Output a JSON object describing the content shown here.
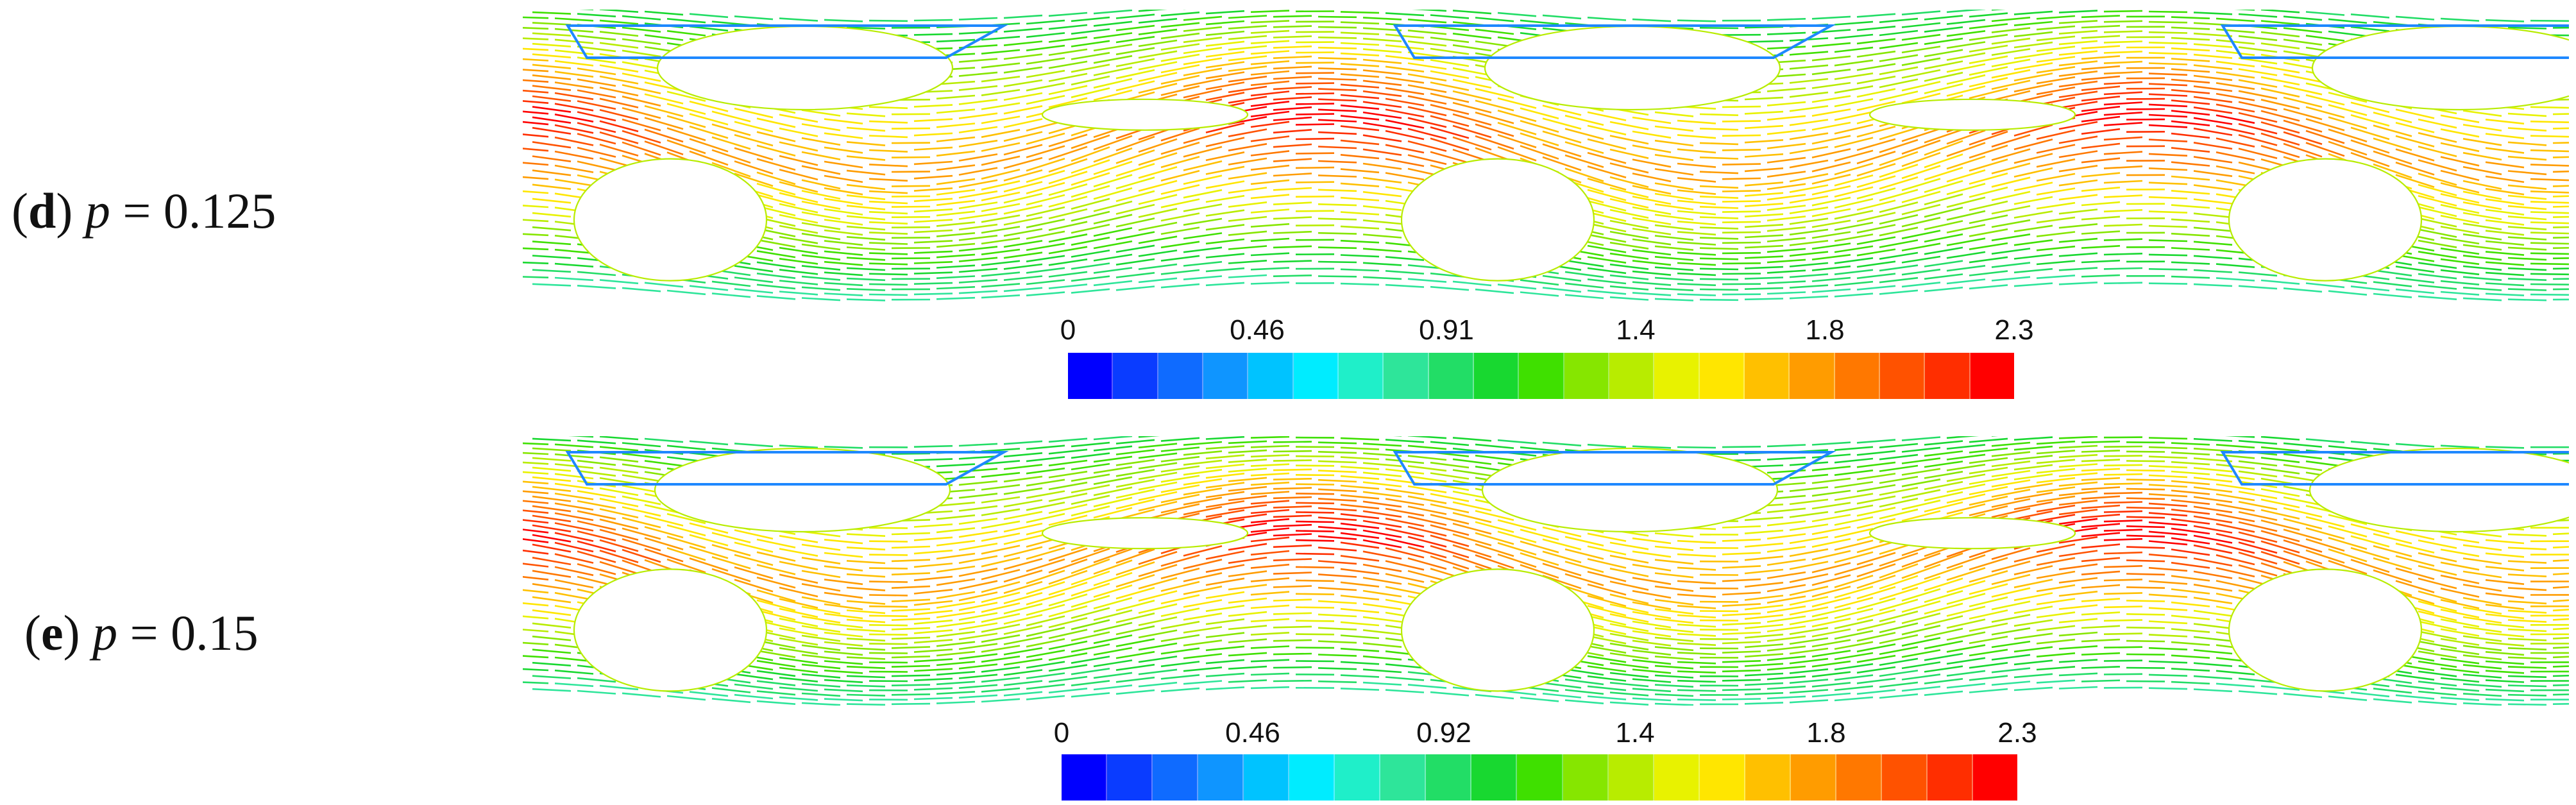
{
  "panels": [
    {
      "id": "d",
      "label_letter": "d",
      "label_var": "p",
      "label_eq": "= 0.125",
      "colorbar_ticks": [
        "0",
        "0.46",
        "0.91",
        "1.4",
        "1.8",
        "2.3"
      ]
    },
    {
      "id": "e",
      "label_letter": "e",
      "label_var": "p",
      "label_eq": "= 0.15",
      "colorbar_ticks": [
        "0",
        "0.46",
        "0.92",
        "1.4",
        "1.8",
        "2.3"
      ]
    }
  ],
  "colormap": [
    "#0000ff",
    "#0a3cff",
    "#0f6bff",
    "#0f95ff",
    "#00c3ff",
    "#00ecff",
    "#1fefc9",
    "#2ee59a",
    "#22dd66",
    "#18d830",
    "#3fe000",
    "#86e600",
    "#b8ec00",
    "#e8f200",
    "#ffe600",
    "#ffc000",
    "#ff9c00",
    "#ff7800",
    "#ff5200",
    "#ff2e00",
    "#ff0000"
  ]
}
